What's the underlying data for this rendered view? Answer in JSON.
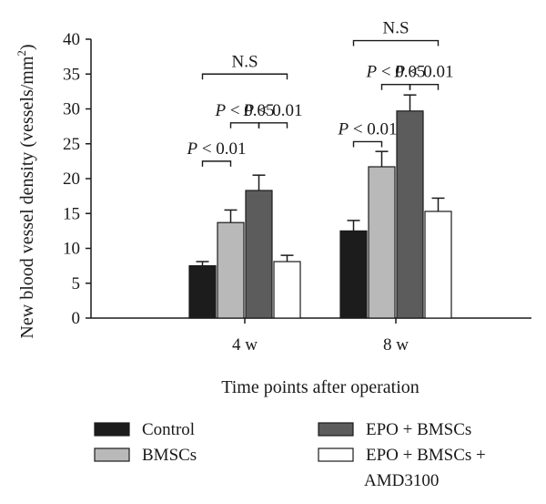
{
  "chart_data": {
    "type": "bar",
    "ylabel": "New blood vessel density (vessels/mm",
    "ylabel_superscript": "2",
    "ylabel_close": ")",
    "xlabel": "Time points after operation",
    "ylim": [
      0,
      40
    ],
    "yticks": [
      "0",
      "5",
      "10",
      "15",
      "20",
      "25",
      "30",
      "35",
      "40"
    ],
    "categories": [
      "4 w",
      "8 w"
    ],
    "series": [
      {
        "name": "Control",
        "color": "#1c1c1c",
        "values": [
          7.5,
          12.5
        ],
        "errors": [
          0.6,
          1.5
        ]
      },
      {
        "name": "BMSCs",
        "color": "#b9b9b9",
        "values": [
          13.7,
          21.7
        ],
        "errors": [
          1.8,
          2.2
        ]
      },
      {
        "name": "EPO + BMSCs",
        "color": "#5c5c5c",
        "values": [
          18.3,
          29.7
        ],
        "errors": [
          2.2,
          2.3
        ]
      },
      {
        "name": "EPO + BMSCs + AMD3100",
        "color": "#ffffff",
        "values": [
          8.1,
          15.3
        ],
        "errors": [
          0.9,
          1.9
        ]
      }
    ],
    "legend_lines": [
      [
        "Control"
      ],
      [
        "BMSCs"
      ],
      [
        "EPO + BMSCs"
      ],
      [
        "EPO + BMSCs +",
        "AMD3100"
      ]
    ],
    "annotations": [
      {
        "category": 0,
        "from_series": 0,
        "to_series": 1,
        "text": "P < 0.01",
        "y": 22.5,
        "style": "pvalue"
      },
      {
        "category": 0,
        "from_series": 1,
        "to_series": 2,
        "text": "P < 0.05",
        "y": 28.0,
        "style": "pvalue"
      },
      {
        "category": 0,
        "from_series": 2,
        "to_series": 3,
        "text": "P < 0.01",
        "y": 28.0,
        "style": "pvalue"
      },
      {
        "category": 0,
        "from_series": 0,
        "to_series": 3,
        "text": "N.S",
        "y": 35.0,
        "style": "plain"
      },
      {
        "category": 1,
        "from_series": 0,
        "to_series": 1,
        "text": "P < 0.01",
        "y": 25.3,
        "style": "pvalue"
      },
      {
        "category": 1,
        "from_series": 1,
        "to_series": 2,
        "text": "P < 0.05",
        "y": 33.5,
        "style": "pvalue"
      },
      {
        "category": 1,
        "from_series": 2,
        "to_series": 3,
        "text": "P < 0.01",
        "y": 33.5,
        "style": "pvalue"
      },
      {
        "category": 1,
        "from_series": 0,
        "to_series": 3,
        "text": "N.S",
        "y": 39.8,
        "style": "plain"
      }
    ],
    "grid": false,
    "legend_position": "bottom"
  }
}
